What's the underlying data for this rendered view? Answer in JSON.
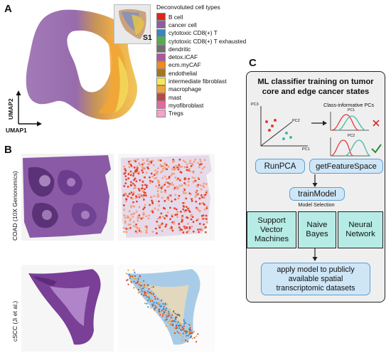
{
  "panel_labels": {
    "a": "A",
    "b": "B",
    "c": "C"
  },
  "panel_a": {
    "inset_label": "S1",
    "legend_title": "Deconvoluted cell types",
    "cell_types": [
      {
        "label": "B cell",
        "color": "#e2231a"
      },
      {
        "label": "cancer cell",
        "color": "#8c5ea1"
      },
      {
        "label": "cytotoxic CD8(+) T",
        "color": "#3a87b8"
      },
      {
        "label": "cytotoxic CD8(+) T exhausted",
        "color": "#4fb048"
      },
      {
        "label": "dendritic",
        "color": "#6f6f6f"
      },
      {
        "label": "detox.iCAF",
        "color": "#b1549c"
      },
      {
        "label": "ecm.myCAF",
        "color": "#f28b1d"
      },
      {
        "label": "endothelial",
        "color": "#a4761e"
      },
      {
        "label": "intermediate fibroblast",
        "color": "#f5e85a"
      },
      {
        "label": "macrophage",
        "color": "#f2a43a"
      },
      {
        "label": "mast",
        "color": "#b54a4a"
      },
      {
        "label": "myofibroblast",
        "color": "#e9679e"
      },
      {
        "label": "Tregs",
        "color": "#f3a3c8"
      }
    ],
    "y_axis": "UMAP2",
    "x_axis": "UMAP1"
  },
  "panel_b": {
    "row1_label": "COAD (10X Genonomics)",
    "row2_label": "cSCC (Ji et al.)"
  },
  "panel_c": {
    "title": "ML classifier training on tumor core and edge cancer states",
    "scatter_labels": {
      "y": "PC3",
      "z": "PC2",
      "x": "PC1"
    },
    "pcs_title": "Class-informative PCs",
    "pc_curve_labels": [
      "PC1",
      "PC2"
    ],
    "step_runpca": "RunPCA",
    "step_getfeature": "getFeatureSpace",
    "step_train": "trainModel",
    "model_selection": "Model Selection",
    "models": [
      "Support Vector Machines",
      "Naive Bayes",
      "Neural Network"
    ],
    "apply_text": "apply model to publicly available spatial transcriptomic datasets"
  }
}
